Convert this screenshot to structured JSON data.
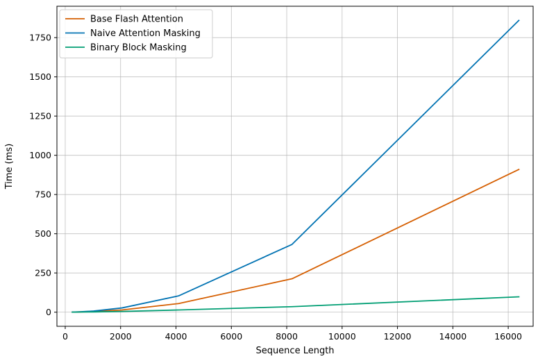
{
  "chart_data": {
    "type": "line",
    "title": "",
    "xlabel": "Sequence Length",
    "ylabel": "Time (ms)",
    "xlim": [
      -300,
      16900
    ],
    "ylim": [
      -90,
      1950
    ],
    "xticks": [
      0,
      2000,
      4000,
      6000,
      8000,
      10000,
      12000,
      14000,
      16000
    ],
    "yticks": [
      0,
      250,
      500,
      750,
      1000,
      1250,
      1500,
      1750
    ],
    "grid": true,
    "legend_position": "top-left",
    "x": [
      256,
      512,
      1024,
      2048,
      4096,
      8192,
      16384
    ],
    "series": [
      {
        "name": "Base Flash Attention",
        "color": "#d55e00",
        "values": [
          0.5,
          1.5,
          4,
          14,
          55,
          213,
          910
        ]
      },
      {
        "name": "Naive Attention Masking",
        "color": "#0072b2",
        "values": [
          0.5,
          2,
          7,
          27,
          104,
          432,
          1860
        ]
      },
      {
        "name": "Binary Block Masking",
        "color": "#009e73",
        "values": [
          0.3,
          0.6,
          1.5,
          4.5,
          14,
          35,
          98
        ]
      }
    ]
  }
}
